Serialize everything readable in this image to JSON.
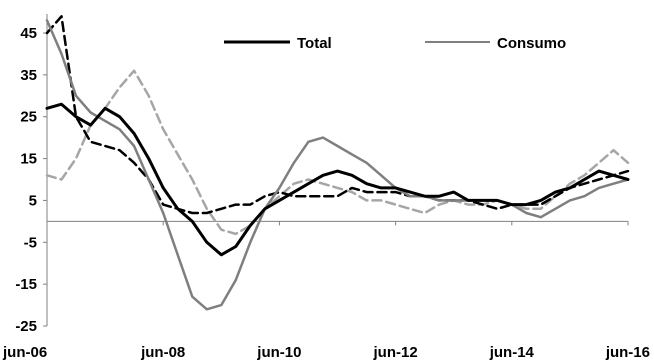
{
  "chart_data": {
    "type": "line",
    "title": "",
    "xlabel": "",
    "ylabel": "",
    "ylim": [
      -25,
      45
    ],
    "yticks": [
      "45",
      "35",
      "25",
      "15",
      "5",
      "-5",
      "-15",
      "-25"
    ],
    "ytick_values": [
      45,
      35,
      25,
      15,
      5,
      -5,
      -15,
      -25
    ],
    "xticks": [
      "jun-06",
      "jun-08",
      "jun-10",
      "jun-12",
      "jun-14",
      "jun-16"
    ],
    "xtick_values": [
      2006.42,
      2008.42,
      2010.42,
      2012.42,
      2014.42,
      2016.42
    ],
    "grid": false,
    "legend_position": "top",
    "legend": [
      {
        "label": "Total",
        "color": "#000000"
      },
      {
        "label": "Consumo",
        "color": "#7f7f7f"
      }
    ],
    "series": [
      {
        "name": "Total",
        "color": "#000000",
        "style": "solid",
        "x": [
          2006.42,
          2006.67,
          2006.92,
          2007.17,
          2007.42,
          2007.67,
          2007.92,
          2008.17,
          2008.42,
          2008.67,
          2008.92,
          2009.17,
          2009.42,
          2009.67,
          2009.92,
          2010.17,
          2010.42,
          2010.67,
          2010.92,
          2011.17,
          2011.42,
          2011.67,
          2011.92,
          2012.17,
          2012.42,
          2012.67,
          2012.92,
          2013.17,
          2013.42,
          2013.67,
          2013.92,
          2014.17,
          2014.42,
          2014.67,
          2014.92,
          2015.17,
          2015.42,
          2015.67,
          2015.92,
          2016.17,
          2016.42
        ],
        "values": [
          27,
          28,
          25,
          23,
          27,
          25,
          21,
          15,
          8,
          3,
          0,
          -5,
          -8,
          -6,
          -1,
          3,
          5,
          7,
          9,
          11,
          12,
          11,
          9,
          8,
          8,
          7,
          6,
          6,
          7,
          5,
          5,
          5,
          4,
          4,
          5,
          7,
          8,
          10,
          12,
          11,
          10
        ]
      },
      {
        "name": "Consumo",
        "color": "#7f7f7f",
        "style": "solid",
        "x": [
          2006.42,
          2006.67,
          2006.92,
          2007.17,
          2007.42,
          2007.67,
          2007.92,
          2008.17,
          2008.42,
          2008.67,
          2008.92,
          2009.17,
          2009.42,
          2009.67,
          2009.92,
          2010.17,
          2010.42,
          2010.67,
          2010.92,
          2011.17,
          2011.42,
          2011.67,
          2011.92,
          2012.17,
          2012.42,
          2012.67,
          2012.92,
          2013.17,
          2013.42,
          2013.67,
          2013.92,
          2014.17,
          2014.42,
          2014.67,
          2014.92,
          2015.17,
          2015.42,
          2015.67,
          2015.92,
          2016.17,
          2016.42
        ],
        "values": [
          48,
          40,
          30,
          26,
          24,
          22,
          18,
          10,
          2,
          -8,
          -18,
          -21,
          -20,
          -14,
          -5,
          3,
          8,
          14,
          19,
          20,
          18,
          16,
          14,
          11,
          8,
          6,
          6,
          5,
          5,
          5,
          5,
          5,
          4,
          2,
          1,
          3,
          5,
          6,
          8,
          9,
          10
        ]
      },
      {
        "name": "",
        "color": "#000000",
        "style": "dashed",
        "x": [
          2006.42,
          2006.67,
          2006.92,
          2007.17,
          2007.42,
          2007.67,
          2007.92,
          2008.17,
          2008.42,
          2008.67,
          2008.92,
          2009.17,
          2009.42,
          2009.67,
          2009.92,
          2010.17,
          2010.42,
          2010.67,
          2010.92,
          2011.17,
          2011.42,
          2011.67,
          2011.92,
          2012.17,
          2012.42,
          2012.67,
          2012.92,
          2013.17,
          2013.42,
          2013.67,
          2013.92,
          2014.17,
          2014.42,
          2014.67,
          2014.92,
          2015.17,
          2015.42,
          2015.67,
          2015.92,
          2016.17,
          2016.42
        ],
        "values": [
          45,
          49,
          25,
          19,
          18,
          17,
          14,
          10,
          4,
          3,
          2,
          2,
          3,
          4,
          4,
          6,
          7,
          6,
          6,
          6,
          6,
          8,
          7,
          7,
          7,
          6,
          6,
          5,
          5,
          5,
          4,
          3,
          4,
          4,
          4,
          6,
          8,
          9,
          10,
          11,
          12
        ]
      },
      {
        "name": "",
        "color": "#a6a6a6",
        "style": "dashed",
        "x": [
          2006.42,
          2006.67,
          2006.92,
          2007.17,
          2007.42,
          2007.67,
          2007.92,
          2008.17,
          2008.42,
          2008.67,
          2008.92,
          2009.17,
          2009.42,
          2009.67,
          2009.92,
          2010.17,
          2010.42,
          2010.67,
          2010.92,
          2011.17,
          2011.42,
          2011.67,
          2011.92,
          2012.17,
          2012.42,
          2012.67,
          2012.92,
          2013.17,
          2013.42,
          2013.67,
          2013.92,
          2014.17,
          2014.42,
          2014.67,
          2014.92,
          2015.17,
          2015.42,
          2015.67,
          2015.92,
          2016.17,
          2016.42
        ],
        "values": [
          11,
          10,
          15,
          23,
          27,
          32,
          36,
          30,
          22,
          16,
          10,
          3,
          -2,
          -3,
          -1,
          3,
          6,
          9,
          10,
          9,
          8,
          7,
          5,
          5,
          4,
          3,
          2,
          4,
          5,
          4,
          4,
          5,
          4,
          3,
          3,
          6,
          9,
          11,
          14,
          17,
          14
        ]
      }
    ]
  }
}
